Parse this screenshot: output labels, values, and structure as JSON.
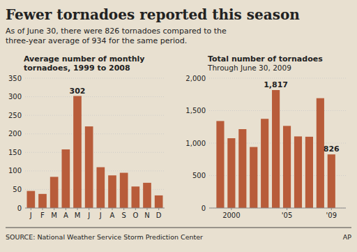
{
  "title": "Fewer tornadoes reported this season",
  "subtitle": [
    "As of June 30, there were 826 tornadoes compared to the",
    "three-year average of 934 for the same period."
  ],
  "source": "SOURCE: National Weather Service Storm Prediction Center",
  "credit": "AP",
  "chart_data": [
    {
      "type": "bar",
      "title": [
        "Average number of monthly",
        "tornadoes, 1999 to 2008"
      ],
      "categories": [
        "J",
        "F",
        "M",
        "A",
        "M",
        "J",
        "J",
        "A",
        "S",
        "O",
        "N",
        "D"
      ],
      "values": [
        46,
        38,
        84,
        158,
        302,
        220,
        110,
        88,
        95,
        58,
        68,
        34
      ],
      "color": "#b85c3a",
      "ylim": [
        0,
        350
      ],
      "yticks": [
        0,
        50,
        100,
        150,
        200,
        250,
        300,
        350
      ],
      "grid": true,
      "annotations": [
        {
          "label": "302",
          "index": 4
        }
      ]
    },
    {
      "type": "bar",
      "title": [
        "Total number of tornadoes"
      ],
      "subtitle": "Through June 30, 2009",
      "x": [
        1999,
        2000,
        2001,
        2002,
        2003,
        2004,
        2005,
        2006,
        2007,
        2008,
        2009
      ],
      "values": [
        1340,
        1075,
        1215,
        940,
        1374,
        1817,
        1265,
        1103,
        1098,
        1692,
        826
      ],
      "color": "#b85c3a",
      "xlim": [
        1998.0,
        2010.3
      ],
      "xticks": [
        2000,
        {
          "value": 2005,
          "label": "'05"
        },
        {
          "value": 2009,
          "label": "'09"
        }
      ],
      "ylim": [
        0,
        2000
      ],
      "yticks": [
        0,
        500,
        {
          "value": 1000,
          "label": "1,000"
        },
        {
          "value": 1500,
          "label": "1,500"
        },
        {
          "value": 2000,
          "label": "2,000"
        }
      ],
      "grid": true,
      "annotations": [
        {
          "label": "1,817",
          "x": 2004
        },
        {
          "label": "826",
          "x": 2009
        }
      ]
    }
  ]
}
